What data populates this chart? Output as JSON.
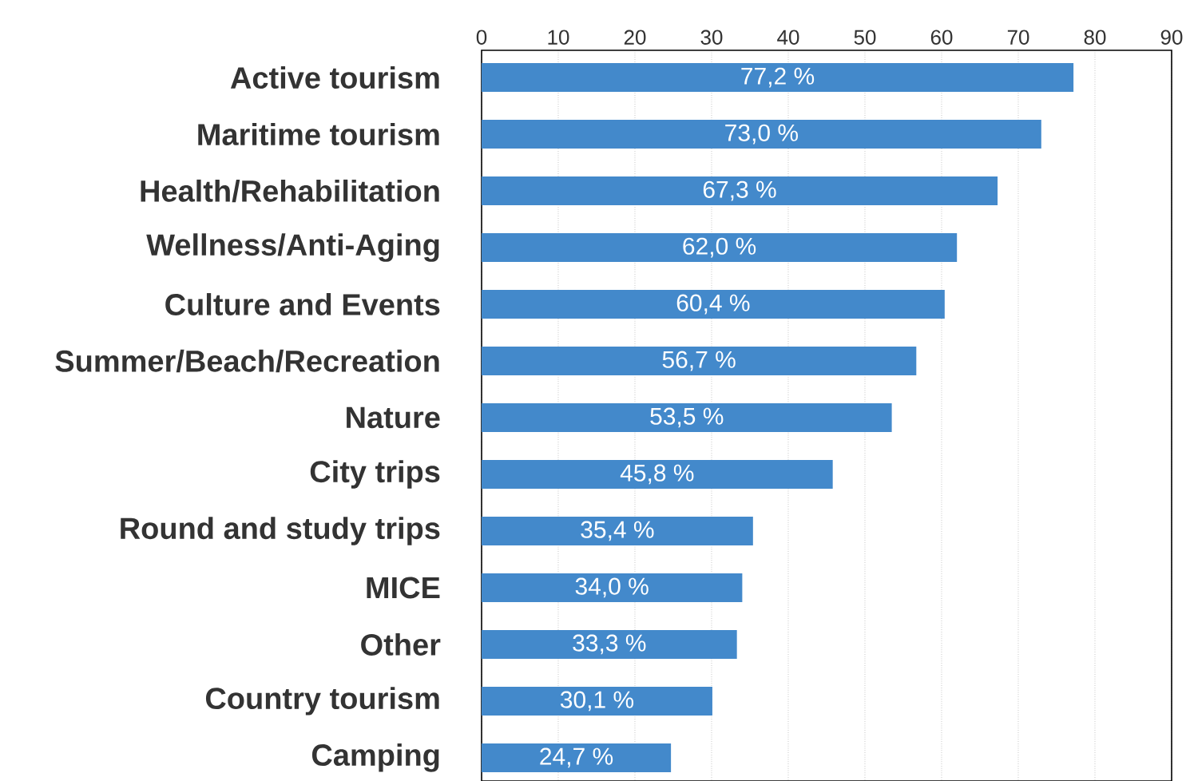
{
  "chart_data": {
    "type": "bar",
    "orientation": "horizontal",
    "categories": [
      "Active tourism",
      "Maritime tourism",
      "Health/Rehabilitation",
      "Wellness/Anti-Aging",
      "Culture and Events",
      "Summer/Beach/Recreation",
      "Nature",
      "City trips",
      "Round and study trips",
      "MICE",
      "Other",
      "Country tourism",
      "Camping"
    ],
    "values": [
      77.2,
      73.0,
      67.3,
      62.0,
      60.4,
      56.7,
      53.5,
      45.8,
      35.4,
      34.0,
      33.3,
      30.1,
      24.7
    ],
    "value_labels": [
      "77,2 %",
      "73,0 %",
      "67,3 %",
      "62,0 %",
      "60,4 %",
      "56,7 %",
      "53,5 %",
      "45,8 %",
      "35,4 %",
      "34,0 %",
      "33,3 %",
      "30,1 %",
      "24,7 %"
    ],
    "color": "#4389cb",
    "xlim": [
      0,
      90
    ],
    "xticks": [
      0,
      10,
      20,
      30,
      40,
      50,
      60,
      70,
      80,
      90
    ],
    "grid": "x"
  }
}
